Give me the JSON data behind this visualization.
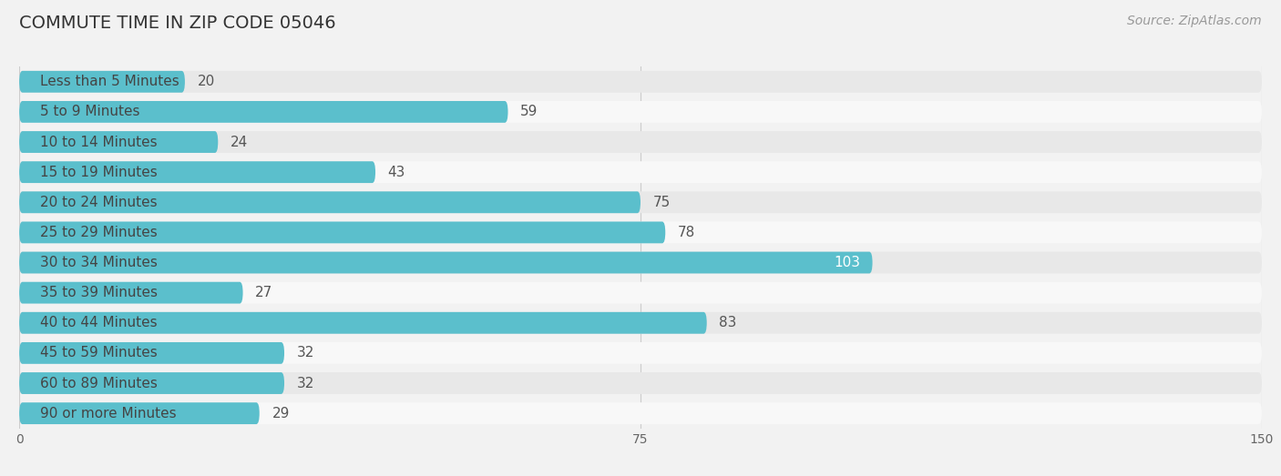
{
  "title": "COMMUTE TIME IN ZIP CODE 05046",
  "source": "Source: ZipAtlas.com",
  "categories": [
    "Less than 5 Minutes",
    "5 to 9 Minutes",
    "10 to 14 Minutes",
    "15 to 19 Minutes",
    "20 to 24 Minutes",
    "25 to 29 Minutes",
    "30 to 34 Minutes",
    "35 to 39 Minutes",
    "40 to 44 Minutes",
    "45 to 59 Minutes",
    "60 to 89 Minutes",
    "90 or more Minutes"
  ],
  "values": [
    20,
    59,
    24,
    43,
    75,
    78,
    103,
    27,
    83,
    32,
    32,
    29
  ],
  "bar_color": "#5bbfcc",
  "label_color_inside": "#ffffff",
  "label_color_outside": "#555555",
  "category_text_color": "#444444",
  "background_color": "#f2f2f2",
  "row_bg_even": "#e8e8e8",
  "row_bg_odd": "#f8f8f8",
  "title_color": "#333333",
  "source_color": "#999999",
  "xlim": [
    0,
    150
  ],
  "xticks": [
    0,
    75,
    150
  ],
  "title_fontsize": 14,
  "source_fontsize": 10,
  "label_fontsize": 11,
  "category_fontsize": 11
}
